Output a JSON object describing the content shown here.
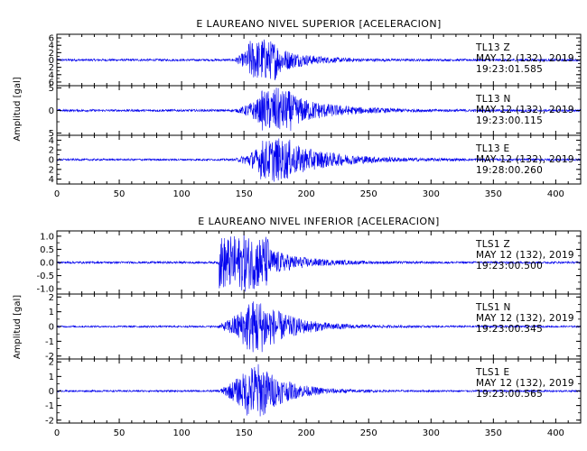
{
  "chart_data": [
    {
      "type": "line",
      "title": "E LAUREANO NIVEL SUPERIOR [ACELERACION]",
      "xlabel": "",
      "ylabel": "Amplitud [gal]",
      "xlim": [
        0,
        420
      ],
      "x_ticks": [
        "0",
        "50",
        "100",
        "150",
        "200",
        "250",
        "300",
        "350",
        "400"
      ],
      "panels": [
        {
          "name": "Z",
          "ylim": [
            -7,
            7
          ],
          "y_ticks": [
            "6",
            "4",
            "2",
            "0",
            "2",
            "4",
            "6"
          ],
          "onset": 140,
          "peak": 165,
          "peak_amp": 6.0,
          "noise": 0.3,
          "decay": 22,
          "spread": 12,
          "annotation": [
            "TL13   Z",
            "MAY 12 (132), 2019",
            "19:23:01.585"
          ]
        },
        {
          "name": "N",
          "ylim": [
            -5.5,
            5.5
          ],
          "y_ticks": [
            "5",
            "0",
            "5"
          ],
          "onset": 142,
          "peak": 176,
          "peak_amp": 5.0,
          "noise": 0.25,
          "decay": 30,
          "spread": 12,
          "annotation": [
            "TL13   N",
            "MAY 12 (132), 2019",
            "19:23:00.115"
          ]
        },
        {
          "name": "E",
          "ylim": [
            -5,
            5
          ],
          "y_ticks": [
            "4",
            "2",
            "0",
            "2",
            "4"
          ],
          "onset": 142,
          "peak": 175,
          "peak_amp": 4.6,
          "noise": 0.2,
          "decay": 35,
          "spread": 12,
          "annotation": [
            "TL13   E",
            "MAY 12 (132), 2019",
            "19:28:00.260"
          ]
        }
      ]
    },
    {
      "type": "line",
      "title": "E LAUREANO NIVEL INFERIOR [ACELERACION]",
      "xlabel": "",
      "ylabel": "Amplitud [gal]",
      "xlim": [
        0,
        420
      ],
      "x_ticks": [
        "0",
        "50",
        "100",
        "150",
        "200",
        "250",
        "300",
        "350",
        "400"
      ],
      "panels": [
        {
          "name": "Z",
          "ylim": [
            -1.2,
            1.2
          ],
          "y_ticks": [
            "1.0",
            "0.5",
            "0.0",
            "-0.5",
            "-1.0"
          ],
          "onset": 128,
          "peak": 150,
          "peak_amp": 1.15,
          "noise": 0.04,
          "decay": 25,
          "spread": 20,
          "annotation": [
            "TLS1   Z",
            "MAY 12 (132), 2019",
            "19:23:00.500"
          ]
        },
        {
          "name": "N",
          "ylim": [
            -2.2,
            2.2
          ],
          "y_ticks": [
            "2",
            "1",
            "0",
            "-1",
            "-2"
          ],
          "onset": 128,
          "peak": 160,
          "peak_amp": 2.0,
          "noise": 0.06,
          "decay": 25,
          "spread": 8,
          "annotation": [
            "TLS1   N",
            "MAY 12 (132), 2019",
            "19:23:00.345"
          ]
        },
        {
          "name": "E",
          "ylim": [
            -2.2,
            2.2
          ],
          "y_ticks": [
            "2",
            "1",
            "0",
            "-1",
            "-2"
          ],
          "onset": 128,
          "peak": 160,
          "peak_amp": 2.0,
          "noise": 0.06,
          "decay": 22,
          "spread": 8,
          "annotation": [
            "TLS1   E",
            "MAY 12 (132), 2019",
            "19:23:00.565"
          ]
        }
      ]
    }
  ],
  "colors": {
    "trace": "#0000ee",
    "axis": "#000000"
  }
}
